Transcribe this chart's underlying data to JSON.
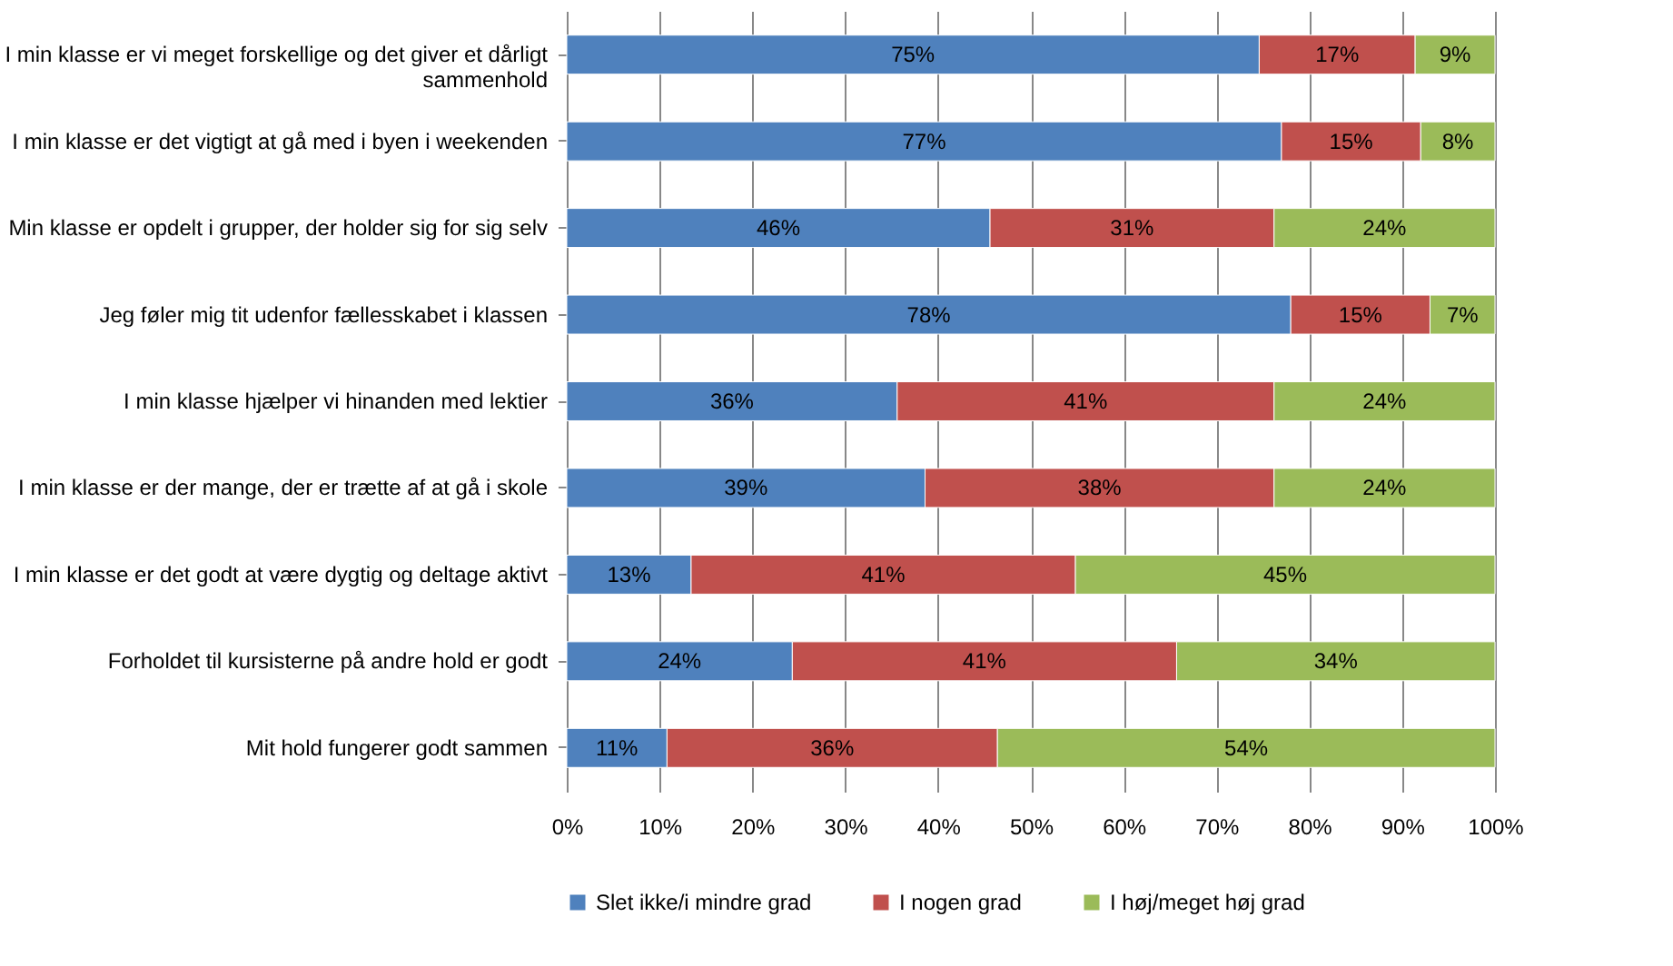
{
  "chart_data": {
    "type": "bar",
    "orientation": "horizontal",
    "stacked": true,
    "categories": [
      "I min klasse er vi meget forskellige og det giver et dårligt sammenhold",
      "I min klasse er det vigtigt at gå med i byen i weekenden",
      "Min klasse er opdelt i grupper, der holder sig for sig selv",
      "Jeg føler mig tit udenfor fællesskabet i klassen",
      "I min klasse hjælper vi hinanden med lektier",
      "I min klasse er der mange, der er trætte af at gå i skole",
      "I min klasse er det godt at være dygtig og deltage aktivt",
      "Forholdet til kursisterne på andre hold er godt",
      "Mit hold fungerer godt sammen"
    ],
    "series": [
      {
        "name": "Slet ikke/i mindre grad",
        "color": "#4f81bd",
        "values": [
          74.6,
          77,
          45.6,
          78,
          35.6,
          38.6,
          13.4,
          24.3,
          10.8
        ],
        "value_labels": [
          "75%",
          "77%",
          "46%",
          "78%",
          "36%",
          "39%",
          "13%",
          "24%",
          "11%"
        ]
      },
      {
        "name": "I nogen grad",
        "color": "#c0504d",
        "values": [
          16.8,
          15,
          30.6,
          15,
          40.6,
          37.6,
          41.4,
          41.4,
          35.6
        ],
        "value_labels": [
          "17%",
          "15%",
          "31%",
          "15%",
          "41%",
          "38%",
          "41%",
          "41%",
          "36%"
        ]
      },
      {
        "name": "I høj/meget høj grad",
        "color": "#9bbb59",
        "values": [
          8.6,
          8,
          23.8,
          7,
          23.8,
          23.8,
          45.2,
          34.3,
          53.6
        ],
        "value_labels": [
          "9%",
          "8%",
          "24%",
          "7%",
          "24%",
          "24%",
          "45%",
          "34%",
          "54%"
        ]
      }
    ],
    "xlim": [
      0,
      100
    ],
    "xticks": [
      {
        "value": 0,
        "label": "0%"
      },
      {
        "value": 10,
        "label": "10%"
      },
      {
        "value": 20,
        "label": "20%"
      },
      {
        "value": 30,
        "label": "30%"
      },
      {
        "value": 40,
        "label": "40%"
      },
      {
        "value": 50,
        "label": "50%"
      },
      {
        "value": 60,
        "label": "60%"
      },
      {
        "value": 70,
        "label": "70%"
      },
      {
        "value": 80,
        "label": "80%"
      },
      {
        "value": 90,
        "label": "90%"
      },
      {
        "value": 100,
        "label": "100%"
      }
    ],
    "grid": "x",
    "legend": "bottom"
  }
}
